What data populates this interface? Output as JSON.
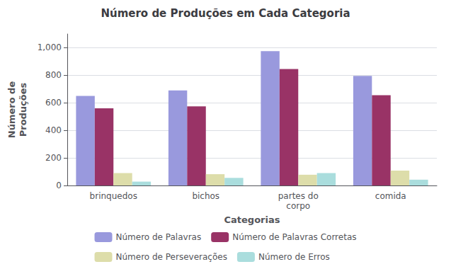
{
  "chart_data": {
    "type": "bar",
    "title": "Número de Produções em Cada Categoria",
    "xlabel": "Categorias",
    "ylabel": "Número de\nProduções",
    "categories": [
      "brinquedos",
      "bichos",
      "partes do\ncorpo",
      "comida"
    ],
    "series": [
      {
        "name": "Número de Palavras",
        "color": "#9999DD",
        "values": [
          650,
          690,
          975,
          795
        ]
      },
      {
        "name": "Número de Palavras Corretas",
        "color": "#993366",
        "values": [
          560,
          575,
          845,
          655
        ]
      },
      {
        "name": "Número de Perseverações",
        "color": "#DDDDAA",
        "values": [
          90,
          82,
          78,
          108
        ]
      },
      {
        "name": "Número de Erros",
        "color": "#AADDDD",
        "values": [
          28,
          55,
          90,
          42
        ]
      }
    ],
    "ylim": [
      0,
      1100
    ],
    "yticks": [
      0,
      200,
      400,
      600,
      800,
      1000
    ],
    "grid": true,
    "legend": "bottom"
  }
}
